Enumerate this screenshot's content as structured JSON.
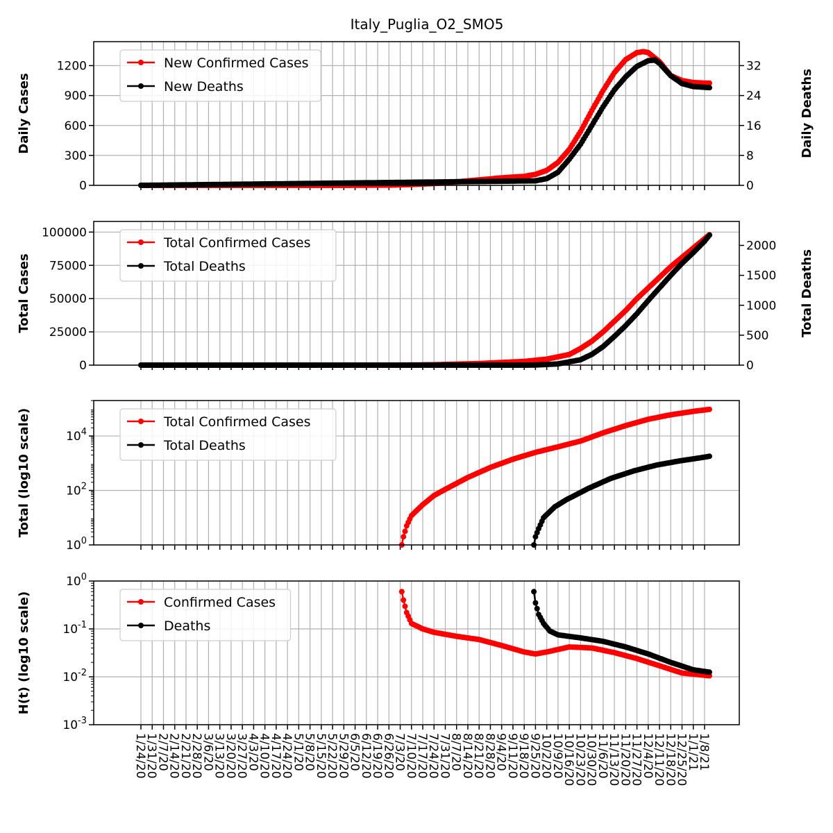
{
  "title": "Italy_Puglia_O2_SMO5",
  "colors": {
    "cases": "#ff0000",
    "deaths": "#000000",
    "grid": "#b0b0b0"
  },
  "x_dates": [
    "1/24/20",
    "1/31/20",
    "2/7/20",
    "2/14/20",
    "2/21/20",
    "2/28/20",
    "3/6/20",
    "3/13/20",
    "3/20/20",
    "3/27/20",
    "4/3/20",
    "4/10/20",
    "4/17/20",
    "4/24/20",
    "5/1/20",
    "5/8/20",
    "5/15/20",
    "5/22/20",
    "5/29/20",
    "6/5/20",
    "6/12/20",
    "6/19/20",
    "6/26/20",
    "7/3/20",
    "7/10/20",
    "7/17/20",
    "7/24/20",
    "7/31/20",
    "8/7/20",
    "8/14/20",
    "8/21/20",
    "8/28/20",
    "9/4/20",
    "9/11/20",
    "9/18/20",
    "9/25/20",
    "10/2/20",
    "10/9/20",
    "10/16/20",
    "10/23/20",
    "10/30/20",
    "11/6/20",
    "11/13/20",
    "11/20/20",
    "11/27/20",
    "12/4/20",
    "12/11/20",
    "12/18/20",
    "12/25/20",
    "1/1/21",
    "1/8/21"
  ],
  "chart_data": [
    {
      "type": "line",
      "panel": "daily",
      "ylabel": "Daily Cases",
      "ylabel_right": "Daily Deaths",
      "ylim": [
        0,
        1440
      ],
      "ylim_right": [
        0,
        38.4
      ],
      "yticks": [
        "0",
        "300",
        "600",
        "900",
        "1200"
      ],
      "yticks_right": [
        "0",
        "8",
        "16",
        "24",
        "32"
      ],
      "legend": [
        "New Confirmed Cases",
        "New Deaths"
      ],
      "legend_position": "upper-left",
      "grid": true,
      "series": [
        {
          "name": "New Confirmed Cases",
          "axis": "left",
          "color": "#ff0000",
          "x": [
            "1/24/20",
            "3/27/20",
            "5/29/20",
            "6/26/20",
            "7/10/20",
            "7/24/20",
            "8/7/20",
            "8/21/20",
            "9/4/20",
            "9/18/20",
            "9/25/20",
            "10/2/20",
            "10/9/20",
            "10/16/20",
            "10/23/20",
            "10/30/20",
            "11/6/20",
            "11/13/20",
            "11/20/20",
            "11/27/20",
            "12/1/20",
            "12/4/20",
            "12/11/20",
            "12/18/20",
            "12/25/20",
            "1/1/21",
            "1/8/21",
            "1/11/21"
          ],
          "values": [
            0,
            0,
            0,
            2,
            8,
            18,
            35,
            55,
            75,
            90,
            110,
            150,
            230,
            360,
            540,
            750,
            950,
            1130,
            1260,
            1330,
            1340,
            1330,
            1240,
            1100,
            1050,
            1030,
            1025,
            1025
          ]
        },
        {
          "name": "New Deaths",
          "axis": "right",
          "color": "#000000",
          "x": [
            "1/24/20",
            "9/25/20",
            "10/2/20",
            "10/9/20",
            "10/16/20",
            "10/23/20",
            "10/30/20",
            "11/6/20",
            "11/13/20",
            "11/20/20",
            "11/27/20",
            "12/4/20",
            "12/8/20",
            "12/11/20",
            "12/18/20",
            "12/25/20",
            "1/1/21",
            "1/8/21",
            "1/11/21"
          ],
          "values": [
            0,
            1.2,
            1.8,
            3.5,
            7,
            11,
            16,
            21,
            25.5,
            29,
            31.8,
            33.3,
            33.5,
            32.6,
            29.3,
            27.2,
            26.4,
            26.2,
            26.1
          ]
        }
      ]
    },
    {
      "type": "line",
      "panel": "total",
      "ylabel": "Total Cases",
      "ylabel_right": "Total Deaths",
      "ylim": [
        0,
        108000
      ],
      "ylim_right": [
        0,
        2400
      ],
      "yticks": [
        "0",
        "25000",
        "50000",
        "75000",
        "100000"
      ],
      "yticks_right": [
        "0",
        "500",
        "1000",
        "1500",
        "2000"
      ],
      "legend": [
        "Total Confirmed Cases",
        "Total Deaths"
      ],
      "legend_position": "upper-left",
      "grid": true,
      "series": [
        {
          "name": "Total Confirmed Cases",
          "axis": "left",
          "color": "#ff0000",
          "x": [
            "1/24/20",
            "7/3/20",
            "7/24/20",
            "8/21/20",
            "9/18/20",
            "10/2/20",
            "10/16/20",
            "10/23/20",
            "10/30/20",
            "11/6/20",
            "11/13/20",
            "11/20/20",
            "11/27/20",
            "12/4/20",
            "12/11/20",
            "12/18/20",
            "12/25/20",
            "1/1/21",
            "1/8/21",
            "1/11/21"
          ],
          "values": [
            0,
            0,
            300,
            1200,
            2800,
            4500,
            8000,
            12500,
            18000,
            25000,
            33000,
            41000,
            50000,
            58000,
            66000,
            74000,
            81000,
            88000,
            95000,
            98000
          ]
        },
        {
          "name": "Total Deaths",
          "axis": "right",
          "color": "#000000",
          "x": [
            "1/24/20",
            "9/18/20",
            "9/25/20",
            "10/9/20",
            "10/23/20",
            "10/30/20",
            "11/6/20",
            "11/13/20",
            "11/20/20",
            "11/27/20",
            "12/4/20",
            "12/11/20",
            "12/18/20",
            "12/25/20",
            "1/1/21",
            "1/8/21",
            "1/11/21"
          ],
          "values": [
            0,
            0,
            2,
            20,
            90,
            180,
            310,
            480,
            660,
            860,
            1080,
            1290,
            1500,
            1700,
            1880,
            2070,
            2170
          ]
        }
      ]
    },
    {
      "type": "line",
      "panel": "log",
      "ylabel": "Total (log10 scale)",
      "yscale": "log10",
      "ylim": [
        1,
        200000
      ],
      "yticks": [
        "10^0",
        "10^2",
        "10^4"
      ],
      "legend": [
        "Total Confirmed Cases",
        "Total Deaths"
      ],
      "legend_position": "upper-left",
      "grid": true,
      "series": [
        {
          "name": "Total Confirmed Cases",
          "color": "#ff0000",
          "x": [
            "7/4/20",
            "7/5/20",
            "7/7/20",
            "7/10/20",
            "7/17/20",
            "7/24/20",
            "7/31/20",
            "8/14/20",
            "8/28/20",
            "9/11/20",
            "9/25/20",
            "10/9/20",
            "10/23/20",
            "11/6/20",
            "11/20/20",
            "12/4/20",
            "12/18/20",
            "1/1/21",
            "1/11/21"
          ],
          "values": [
            1,
            2,
            5,
            12,
            30,
            65,
            110,
            300,
            700,
            1400,
            2500,
            4000,
            6500,
            13000,
            24000,
            41000,
            60000,
            80000,
            95000
          ]
        },
        {
          "name": "Total Deaths",
          "color": "#000000",
          "x": [
            "9/24/20",
            "9/25/20",
            "9/27/20",
            "9/30/20",
            "10/7/20",
            "10/14/20",
            "10/28/20",
            "11/11/20",
            "11/25/20",
            "12/9/20",
            "12/23/20",
            "1/6/21",
            "1/11/21"
          ],
          "values": [
            1,
            2,
            4,
            10,
            25,
            45,
            120,
            280,
            520,
            850,
            1200,
            1600,
            1800
          ]
        }
      ]
    },
    {
      "type": "line",
      "panel": "hazard",
      "ylabel": "H(t) (log10 scale)",
      "yscale": "log10",
      "ylim": [
        0.001,
        1
      ],
      "yticks": [
        "10^-3",
        "10^-2",
        "10^-1",
        "10^0"
      ],
      "legend": [
        "Confirmed Cases",
        "Deaths"
      ],
      "legend_position": "upper-left",
      "grid": true,
      "series": [
        {
          "name": "Confirmed Cases",
          "color": "#ff0000",
          "x": [
            "7/4/20",
            "7/5/20",
            "7/7/20",
            "7/10/20",
            "7/17/20",
            "7/24/20",
            "8/7/20",
            "8/21/20",
            "9/4/20",
            "9/18/20",
            "9/25/20",
            "10/2/20",
            "10/16/20",
            "10/30/20",
            "11/13/20",
            "11/27/20",
            "12/11/20",
            "12/25/20",
            "1/11/21"
          ],
          "values": [
            0.6,
            0.4,
            0.22,
            0.13,
            0.1,
            0.085,
            0.07,
            0.06,
            0.045,
            0.033,
            0.03,
            0.033,
            0.042,
            0.04,
            0.032,
            0.024,
            0.017,
            0.012,
            0.0105
          ]
        },
        {
          "name": "Deaths",
          "color": "#000000",
          "x": [
            "9/24/20",
            "9/25/20",
            "9/27/20",
            "9/30/20",
            "10/4/20",
            "10/9/20",
            "10/23/20",
            "11/6/20",
            "11/20/20",
            "12/4/20",
            "12/18/20",
            "1/1/21",
            "1/11/21"
          ],
          "values": [
            0.6,
            0.35,
            0.2,
            0.13,
            0.09,
            0.075,
            0.065,
            0.055,
            0.042,
            0.03,
            0.02,
            0.014,
            0.0125
          ]
        }
      ]
    }
  ]
}
